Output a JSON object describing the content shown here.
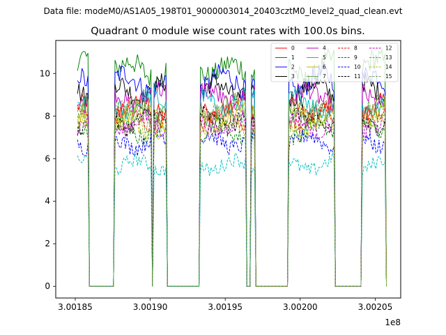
{
  "figure": {
    "suptitle": "Data file: modeM0/AS1A05_198T01_9000003014_20403cztM0_level2_quad_clean.evt",
    "offset_label": "1e8"
  },
  "chart_data": {
    "type": "line",
    "title": "Quadrant 0 module wise count rates with 100.0s bins.",
    "xlabel": "",
    "ylabel": "",
    "xlim": [
      3.001837,
      3.002067
    ],
    "ylim": [
      -0.55,
      11.55
    ],
    "x_scale_exponent": 8,
    "x_ticks": [
      3.00185,
      3.0019,
      3.00195,
      3.002,
      3.00205
    ],
    "x_tick_labels": [
      "3.00185",
      "3.00190",
      "3.00195",
      "3.00200",
      "3.00205"
    ],
    "y_ticks": [
      0,
      2,
      4,
      6,
      8,
      10
    ],
    "y_tick_labels": [
      "0",
      "2",
      "4",
      "6",
      "8",
      "10"
    ],
    "grid": false,
    "legend_position": "top-right",
    "legend_columns": 4,
    "bin_width_s": 100,
    "active_intervals": [
      [
        3.001851,
        3.001859
      ],
      [
        3.001876,
        3.001901
      ],
      [
        3.001902,
        3.001911
      ],
      [
        3.001933,
        3.001964
      ],
      [
        3.001967,
        3.00197
      ],
      [
        3.001992,
        3.002023
      ],
      [
        3.002041,
        3.002057
      ]
    ],
    "series": [
      {
        "name": "0",
        "color": "#ff0000",
        "dash": "solid",
        "level": 8.4
      },
      {
        "name": "1",
        "color": "#008000",
        "dash": "solid",
        "level": 10.3
      },
      {
        "name": "2",
        "color": "#0000ff",
        "dash": "solid",
        "level": 9.6
      },
      {
        "name": "3",
        "color": "#000000",
        "dash": "solid",
        "level": 9.2
      },
      {
        "name": "4",
        "color": "#bf00bf",
        "dash": "solid",
        "level": 8.9
      },
      {
        "name": "5",
        "color": "#00bfbf",
        "dash": "solid",
        "level": 8.6
      },
      {
        "name": "6",
        "color": "#bfbf00",
        "dash": "solid",
        "level": 8.1
      },
      {
        "name": "7",
        "color": "#6aa84f",
        "dash": "solid",
        "level": 8.3
      },
      {
        "name": "8",
        "color": "#ff0000",
        "dash": "dashed",
        "level": 7.9
      },
      {
        "name": "9",
        "color": "#008000",
        "dash": "dashed",
        "level": 7.3
      },
      {
        "name": "10",
        "color": "#0000ff",
        "dash": "dashed",
        "level": 6.8
      },
      {
        "name": "11",
        "color": "#000000",
        "dash": "dashed",
        "level": 7.8
      },
      {
        "name": "12",
        "color": "#bf00bf",
        "dash": "dashed",
        "level": 7.6
      },
      {
        "name": "13",
        "color": "#00bfbf",
        "dash": "dashed",
        "level": 5.7
      },
      {
        "name": "14",
        "color": "#bfbf00",
        "dash": "dashed",
        "level": 7.5
      },
      {
        "name": "15",
        "color": "#6aa84f",
        "dash": "dashed",
        "level": 8.0
      }
    ]
  }
}
